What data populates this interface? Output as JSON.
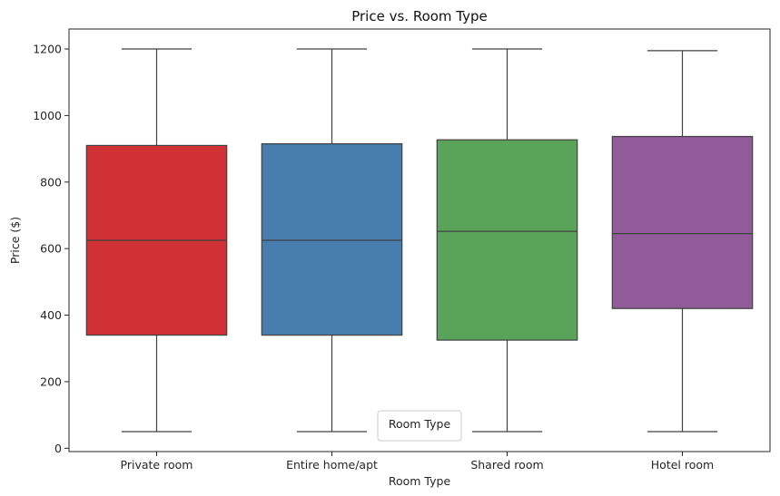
{
  "chart_data": {
    "type": "box",
    "title": "Price vs. Room Type",
    "xlabel": "Room Type",
    "ylabel": "Price ($)",
    "ylim": [
      -10,
      1260
    ],
    "yticks": [
      0,
      200,
      400,
      600,
      800,
      1000,
      1200
    ],
    "ytick_labels": [
      "0",
      "200",
      "400",
      "600",
      "800",
      "1000",
      "1200"
    ],
    "grid": false,
    "legend": {
      "title": "Room Type",
      "placement": "bottom-center"
    },
    "categories": [
      "Private room",
      "Entire home/apt",
      "Shared room",
      "Hotel room"
    ],
    "series": [
      {
        "min": 50,
        "q1": 340,
        "median": 625,
        "q3": 910,
        "max": 1200,
        "color": "#d03135"
      },
      {
        "min": 50,
        "q1": 340,
        "median": 625,
        "q3": 915,
        "max": 1200,
        "color": "#467dad"
      },
      {
        "min": 50,
        "q1": 325,
        "median": 652,
        "q3": 927,
        "max": 1200,
        "color": "#5aa45a"
      },
      {
        "min": 50,
        "q1": 420,
        "median": 645,
        "q3": 937,
        "max": 1195,
        "color": "#915a99"
      }
    ]
  }
}
